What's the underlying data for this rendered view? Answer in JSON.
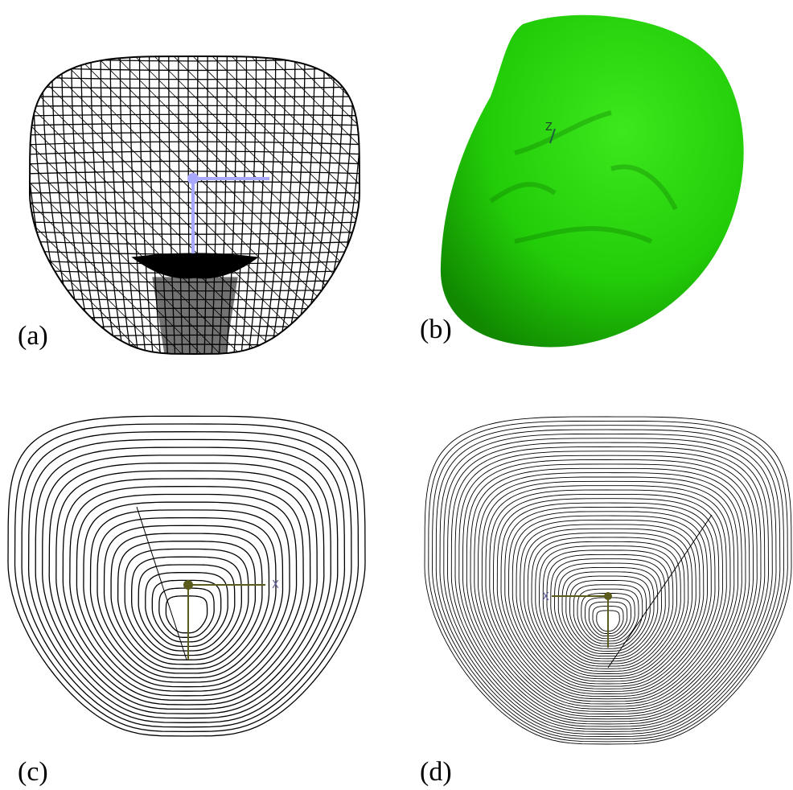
{
  "panels": [
    {
      "label": "(a)"
    },
    {
      "label": "(b)",
      "gizmo_label": "Z"
    },
    {
      "label": "(c)",
      "gizmo_label": "X"
    },
    {
      "label": "(d)",
      "gizmo_label": "X"
    }
  ]
}
